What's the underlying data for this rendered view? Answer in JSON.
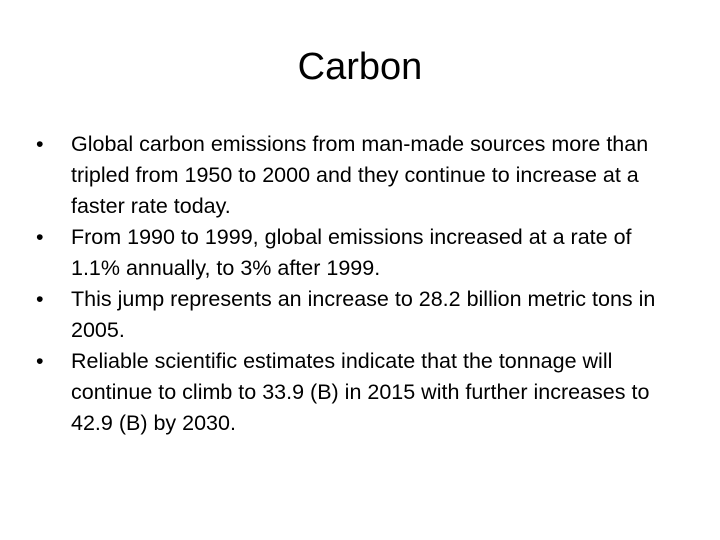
{
  "slide": {
    "title": "Carbon",
    "bullet_marker": "•",
    "bullets": [
      "Global carbon emissions from man-made sources more than tripled from 1950 to 2000 and they continue to increase at a faster rate today.",
      "From 1990 to 1999, global emissions increased at a rate of 1.1% annually, to 3% after 1999.",
      "This jump represents an increase to 28.2 billion metric tons in 2005.",
      "Reliable scientific estimates indicate that the tonnage will continue to climb to 33.9 (B) in 2015 with further increases to 42.9 (B) by 2030."
    ]
  }
}
